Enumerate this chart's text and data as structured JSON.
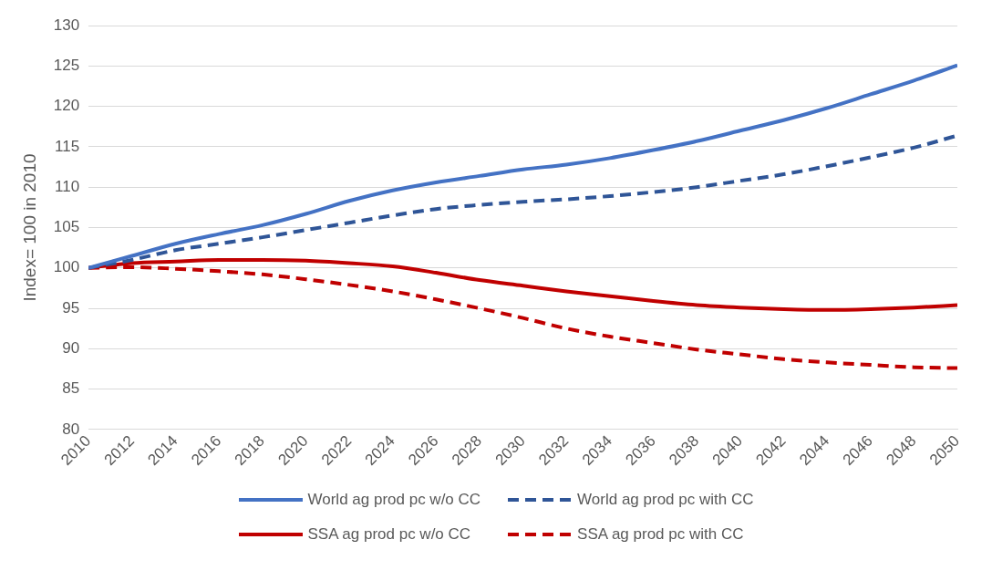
{
  "chart_data": {
    "type": "line",
    "ylabel": "Index= 100 in 2010",
    "x": [
      2010,
      2012,
      2014,
      2016,
      2018,
      2020,
      2022,
      2024,
      2026,
      2028,
      2030,
      2032,
      2034,
      2036,
      2038,
      2040,
      2042,
      2044,
      2046,
      2048,
      2050
    ],
    "xlim": [
      2010,
      2050
    ],
    "xticks": [
      2010,
      2012,
      2014,
      2016,
      2018,
      2020,
      2022,
      2024,
      2026,
      2028,
      2030,
      2032,
      2034,
      2036,
      2038,
      2040,
      2042,
      2044,
      2046,
      2048,
      2050
    ],
    "ylim": [
      80,
      130
    ],
    "yticks": [
      80,
      85,
      90,
      95,
      100,
      105,
      110,
      115,
      120,
      125,
      130
    ],
    "grid": "y",
    "legend": "bottom",
    "marker": "none",
    "series": [
      {
        "name": "World ag prod pc w/o CC",
        "color": "#4472c4",
        "line_style": "solid",
        "values": [
          100,
          101.5,
          103,
          104.2,
          105.3,
          106.7,
          108.3,
          109.6,
          110.6,
          111.4,
          112.2,
          112.8,
          113.6,
          114.6,
          115.7,
          117,
          118.3,
          119.8,
          121.5,
          123.2,
          125.1
        ]
      },
      {
        "name": "World ag prod pc with CC",
        "color": "#2f5597",
        "line_style": "dashed",
        "values": [
          100,
          101,
          102.2,
          103,
          103.8,
          104.7,
          105.6,
          106.5,
          107.3,
          107.8,
          108.2,
          108.5,
          108.9,
          109.4,
          110,
          110.8,
          111.6,
          112.6,
          113.7,
          114.9,
          116.4
        ]
      },
      {
        "name": "SSA ag prod pc w/o CC",
        "color": "#c00000",
        "line_style": "solid",
        "values": [
          100,
          100.6,
          100.8,
          101,
          101,
          100.9,
          100.6,
          100.2,
          99.4,
          98.5,
          97.8,
          97.1,
          96.5,
          95.9,
          95.4,
          95.1,
          94.9,
          94.8,
          94.9,
          95.1,
          95.4
        ]
      },
      {
        "name": "SSA ag prod pc with CC",
        "color": "#c00000",
        "line_style": "dashed",
        "values": [
          100,
          100.1,
          99.9,
          99.6,
          99.2,
          98.6,
          97.9,
          97.1,
          96.1,
          95,
          93.8,
          92.5,
          91.5,
          90.7,
          89.9,
          89.3,
          88.7,
          88.3,
          88,
          87.7,
          87.6
        ]
      }
    ]
  }
}
